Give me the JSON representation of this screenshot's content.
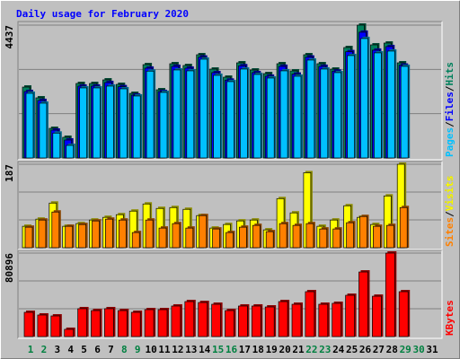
{
  "chart_data": [
    {
      "type": "bar",
      "title": "Daily usage for February 2020",
      "legend_separator": "/",
      "ylim": [
        0,
        4437
      ],
      "yticks": [
        4437
      ],
      "series": [
        {
          "name": "Hits",
          "color": "#00805c",
          "values": [
            2368,
            2009,
            989,
            690,
            2488,
            2488,
            2608,
            2458,
            2158,
            3118,
            2278,
            3148,
            3088,
            3448,
            2968,
            2698,
            3178,
            2938,
            2818,
            3148,
            2908,
            3448,
            3148,
            2968,
            3688,
            4437,
            3778,
            3838,
            3178,
            null,
            null
          ]
        },
        {
          "name": "Files",
          "color": "#0000ff",
          "values": [
            2220,
            1920,
            930,
            600,
            2400,
            2400,
            2520,
            2380,
            2100,
            3000,
            2220,
            3060,
            3000,
            3370,
            2850,
            2600,
            3080,
            2850,
            2730,
            3060,
            2800,
            3370,
            3060,
            2900,
            3550,
            4200,
            3600,
            3720,
            3100,
            null,
            null
          ]
        },
        {
          "name": "Pages",
          "color": "#00c0ff",
          "values": [
            2160,
            1830,
            830,
            420,
            2340,
            2340,
            2400,
            2310,
            2070,
            2900,
            2190,
            2940,
            2910,
            3300,
            2760,
            2550,
            2970,
            2790,
            2670,
            2910,
            2730,
            3270,
            2970,
            2850,
            3420,
            3990,
            3510,
            3570,
            3060,
            null,
            null
          ]
        }
      ]
    },
    {
      "type": "bar",
      "legend_separator": "/",
      "ylim": [
        0,
        187
      ],
      "yticks": [
        187
      ],
      "series": [
        {
          "name": "Visits",
          "color": "#ffff00",
          "values": [
            48,
            64,
            100,
            48,
            54,
            62,
            68,
            74,
            82,
            98,
            88,
            90,
            86,
            72,
            44,
            52,
            60,
            62,
            40,
            110,
            78,
            168,
            48,
            62,
            94,
            68,
            52,
            116,
            187,
            null,
            null
          ]
        },
        {
          "name": "Sites",
          "color": "#ff8000",
          "values": [
            46,
            62,
            80,
            48,
            52,
            60,
            64,
            62,
            34,
            62,
            44,
            54,
            44,
            72,
            42,
            34,
            46,
            50,
            36,
            54,
            50,
            54,
            42,
            42,
            56,
            70,
            48,
            50,
            90,
            null,
            null
          ]
        }
      ]
    },
    {
      "type": "bar",
      "ylim": [
        0,
        80896
      ],
      "yticks": [
        80896
      ],
      "categories": [
        "1",
        "2",
        "3",
        "4",
        "5",
        "6",
        "7",
        "8",
        "9",
        "10",
        "11",
        "12",
        "13",
        "14",
        "15",
        "16",
        "17",
        "18",
        "19",
        "20",
        "21",
        "22",
        "23",
        "24",
        "25",
        "26",
        "27",
        "28",
        "29",
        "30",
        "31"
      ],
      "label_colors": [
        "#008040",
        "#008040",
        "#000000",
        "#000000",
        "#000000",
        "#000000",
        "#000000",
        "#008040",
        "#008040",
        "#000000",
        "#000000",
        "#000000",
        "#000000",
        "#000000",
        "#008040",
        "#008040",
        "#000000",
        "#000000",
        "#000000",
        "#000000",
        "#000000",
        "#008040",
        "#008040",
        "#000000",
        "#000000",
        "#000000",
        "#000000",
        "#000000",
        "#008040",
        "#008040",
        "#000000"
      ],
      "series": [
        {
          "name": "KBytes",
          "color": "#ff0000",
          "values": [
            23500,
            20900,
            20000,
            7000,
            27000,
            25200,
            27000,
            25200,
            23500,
            26100,
            26100,
            29600,
            33900,
            33000,
            31300,
            25200,
            29600,
            29600,
            28700,
            33900,
            31300,
            43500,
            31300,
            32200,
            40000,
            62600,
            39100,
            80896,
            43500,
            null,
            null
          ]
        }
      ]
    }
  ]
}
